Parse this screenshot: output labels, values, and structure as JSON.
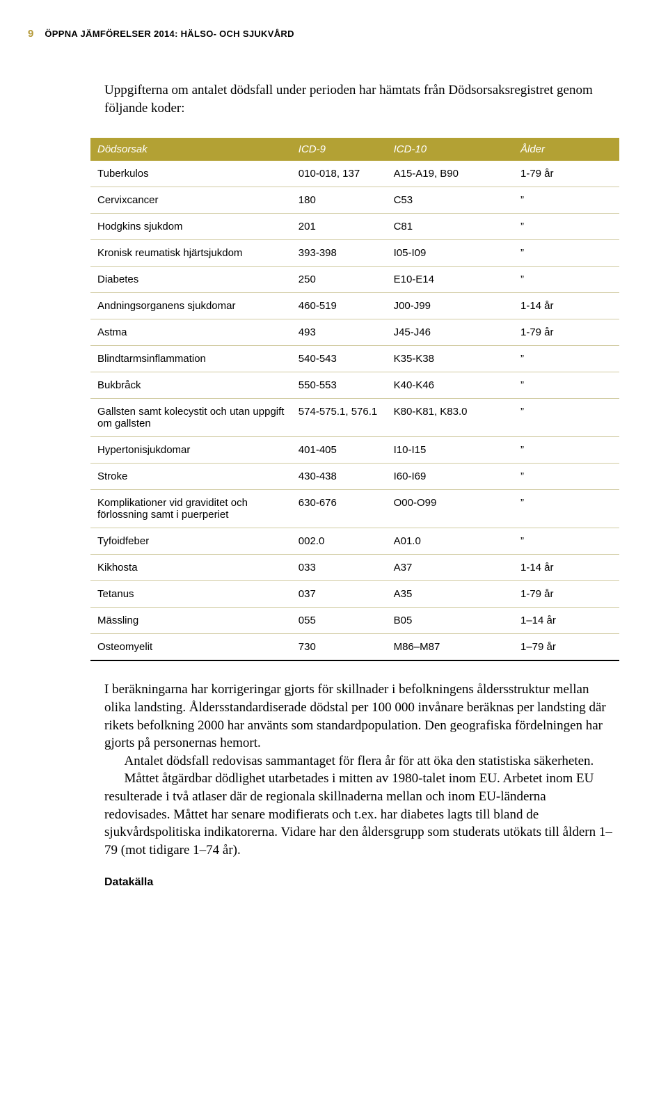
{
  "header": {
    "page_number": "9",
    "doc_title": "ÖPPNA JÄMFÖRELSER 2014: HÄLSO- OCH SJUKVÅRD"
  },
  "intro": "Uppgifterna om antalet dödsfall under perioden har hämtats från Dödsorsaksregistret genom följande koder:",
  "table": {
    "headers": [
      "Dödsorsak",
      "ICD-9",
      "ICD-10",
      "Ålder"
    ],
    "rows": [
      [
        "Tuberkulos",
        "010-018, 137",
        "A15-A19, B90",
        "1-79 år"
      ],
      [
        "Cervixcancer",
        "180",
        "C53",
        "”"
      ],
      [
        "Hodgkins sjukdom",
        "201",
        "C81",
        "”"
      ],
      [
        "Kronisk reumatisk hjärtsjukdom",
        "393-398",
        "I05-I09",
        "”"
      ],
      [
        "Diabetes",
        "250",
        "E10-E14",
        "”"
      ],
      [
        "Andningsorganens sjukdomar",
        "460-519",
        "J00-J99",
        "1-14 år"
      ],
      [
        "Astma",
        "493",
        "J45-J46",
        "1-79 år"
      ],
      [
        "Blindtarmsinflammation",
        "540-543",
        "K35-K38",
        "”"
      ],
      [
        "Bukbråck",
        "550-553",
        "K40-K46",
        "”"
      ],
      [
        "Gallsten samt kolecystit och utan uppgift om gallsten",
        "574-575.1, 576.1",
        "K80-K81, K83.0",
        "”"
      ],
      [
        "Hypertonisjukdomar",
        "401-405",
        "I10-I15",
        "”"
      ],
      [
        "Stroke",
        "430-438",
        "I60-I69",
        "”"
      ],
      [
        "Komplikationer vid graviditet och förlossning samt i puerperiet",
        "630-676",
        "O00-O99",
        "”"
      ],
      [
        "Tyfoidfeber",
        "002.0",
        "A01.0",
        "”"
      ],
      [
        "Kikhosta",
        "033",
        "A37",
        "1-14 år"
      ],
      [
        "Tetanus",
        "037",
        "A35",
        "1-79 år"
      ],
      [
        "Mässling",
        "055",
        "B05",
        "1–14 år"
      ],
      [
        "Osteomyelit",
        "730",
        "M86–M87",
        "1–79 år"
      ]
    ]
  },
  "paragraphs": {
    "p1": "I beräkningarna har korrigeringar gjorts för skillnader i befolkningens åldersstruktur mellan olika landsting. Åldersstandardiserade dödstal per 100 000 invånare beräknas per landsting där rikets befolkning 2000 har använts som standardpopulation. Den geografiska fördelningen har gjorts på personernas hemort.",
    "p2": "Antalet dödsfall redovisas sammantaget för flera år för att öka den statistiska säkerheten.",
    "p3": "Måttet åtgärdbar dödlighet utarbetades i mitten av 1980-talet inom EU. Arbetet inom EU resulterade i två atlaser där de regionala skillnaderna mellan och inom EU-länderna redovisades. Måttet har senare modifierats och t.ex. har diabetes lagts till bland de sjukvårdspolitiska indikatorerna. Vidare har den åldersgrupp som studerats utökats till åldern 1–79 (mot tidigare 1–74 år)."
  },
  "data_heading": "Datakälla"
}
